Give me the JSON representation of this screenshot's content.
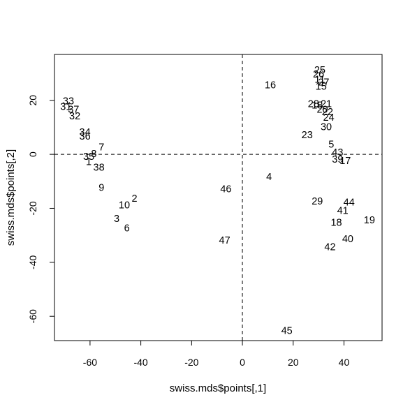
{
  "chart_data": {
    "type": "scatter",
    "xlabel": "swiss.mds$points[,1]",
    "ylabel": "swiss.mds$points[,2]",
    "xlim": [
      -74,
      55
    ],
    "ylim": [
      -69,
      37
    ],
    "x_ticks": [
      -60,
      -40,
      -20,
      0,
      20,
      40
    ],
    "y_ticks": [
      -60,
      -40,
      -20,
      0,
      20
    ],
    "reference_lines": {
      "x": 0,
      "y": 0,
      "style": "dashed"
    },
    "grid": false,
    "points": [
      {
        "label": "33",
        "x": -68.5,
        "y": 19.5
      },
      {
        "label": "31",
        "x": -69.5,
        "y": 17.5
      },
      {
        "label": "37",
        "x": -66.5,
        "y": 16.5
      },
      {
        "label": "32",
        "x": -66.0,
        "y": 14.0
      },
      {
        "label": "34",
        "x": -62.0,
        "y": 8.0
      },
      {
        "label": "36",
        "x": -62.0,
        "y": 6.5
      },
      {
        "label": "7",
        "x": -55.5,
        "y": 2.5
      },
      {
        "label": "8",
        "x": -58.5,
        "y": 0.0
      },
      {
        "label": "35",
        "x": -60.5,
        "y": -1.0
      },
      {
        "label": "1",
        "x": -60.5,
        "y": -3.0
      },
      {
        "label": "38",
        "x": -56.5,
        "y": -5.0
      },
      {
        "label": "9",
        "x": -55.5,
        "y": -12.5
      },
      {
        "label": "2",
        "x": -42.5,
        "y": -16.5
      },
      {
        "label": "10",
        "x": -46.5,
        "y": -19.0
      },
      {
        "label": "3",
        "x": -49.5,
        "y": -24.0
      },
      {
        "label": "6",
        "x": -45.5,
        "y": -27.5
      },
      {
        "label": "46",
        "x": -6.5,
        "y": -13.0
      },
      {
        "label": "47",
        "x": -7.0,
        "y": -32.0
      },
      {
        "label": "16",
        "x": 11.0,
        "y": 25.5
      },
      {
        "label": "4",
        "x": 10.5,
        "y": -8.5
      },
      {
        "label": "45",
        "x": 17.5,
        "y": -65.5
      },
      {
        "label": "25",
        "x": 30.5,
        "y": 31.0
      },
      {
        "label": "26",
        "x": 30.0,
        "y": 29.5
      },
      {
        "label": "11",
        "x": 30.5,
        "y": 27.5
      },
      {
        "label": "27",
        "x": 32.0,
        "y": 26.5
      },
      {
        "label": "15",
        "x": 31.0,
        "y": 25.0
      },
      {
        "label": "28",
        "x": 28.0,
        "y": 18.5
      },
      {
        "label": "18",
        "x": 29.5,
        "y": 18.0
      },
      {
        "label": "21",
        "x": 33.0,
        "y": 18.5
      },
      {
        "label": "20",
        "x": 31.5,
        "y": 16.5
      },
      {
        "label": "22",
        "x": 33.5,
        "y": 15.5
      },
      {
        "label": "24",
        "x": 34.0,
        "y": 13.5
      },
      {
        "label": "30",
        "x": 33.0,
        "y": 10.0
      },
      {
        "label": "23",
        "x": 25.5,
        "y": 7.0
      },
      {
        "label": "5",
        "x": 35.0,
        "y": 3.5
      },
      {
        "label": "43",
        "x": 37.5,
        "y": 0.5
      },
      {
        "label": "39",
        "x": 37.5,
        "y": -2.0
      },
      {
        "label": "17",
        "x": 40.5,
        "y": -2.5
      },
      {
        "label": "29",
        "x": 29.5,
        "y": -17.5
      },
      {
        "label": "44",
        "x": 42.0,
        "y": -18.0
      },
      {
        "label": "41",
        "x": 39.5,
        "y": -21.0
      },
      {
        "label": "18",
        "x": 37.0,
        "y": -25.5
      },
      {
        "label": "19",
        "x": 50.0,
        "y": -24.5
      },
      {
        "label": "40",
        "x": 41.5,
        "y": -31.5
      },
      {
        "label": "42",
        "x": 34.5,
        "y": -34.5
      }
    ]
  }
}
